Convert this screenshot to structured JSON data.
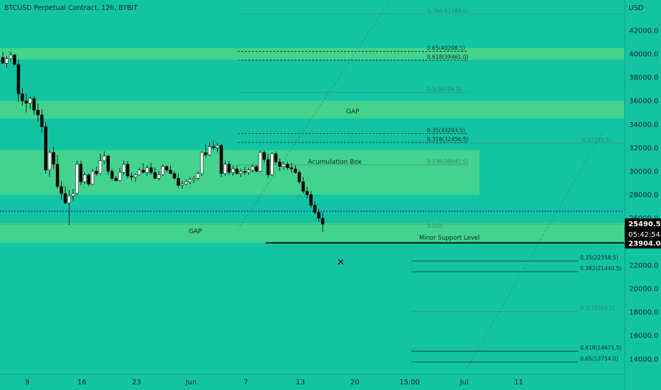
{
  "header": {
    "title": "BTCUSD Perpetual Contract, 12h, BYBIT",
    "currency": "USD"
  },
  "colors": {
    "background": "#13c4a3",
    "zone": "#43d38e",
    "candle_up": "#ffffff",
    "candle_down": "#000000",
    "blue_dotted": "#1f2dcc"
  },
  "chart_data": {
    "type": "candlestick",
    "title": "BTCUSD Perpetual Contract, 12h, BYBIT",
    "y_axis": {
      "unit": "USD",
      "range": [
        13000,
        44000
      ],
      "ticks": [
        14000,
        16000,
        18000,
        20000,
        22000,
        24000,
        26000,
        28000,
        30000,
        32000,
        34000,
        36000,
        38000,
        40000,
        42000
      ],
      "tick_labels": [
        "14000.0",
        "16000.0",
        "18000.0",
        "20000.0",
        "22000.0",
        "24000.0",
        "26000.0",
        "28000.0",
        "30000.0",
        "32000.0",
        "34000.0",
        "36000.0",
        "38000.0",
        "40000.0",
        "42000.0"
      ]
    },
    "x_axis": {
      "labels": [
        "9",
        "16",
        "23",
        "Jun",
        "7",
        "13",
        "20",
        "15:00",
        "Jul",
        "11"
      ],
      "label_index": [
        7,
        21,
        35,
        49,
        63,
        77,
        91,
        105,
        119,
        133
      ]
    },
    "candles_ohlc": [
      [
        39700,
        40200,
        39200,
        39200
      ],
      [
        39200,
        39800,
        38800,
        39600
      ],
      [
        39600,
        40200,
        39400,
        39900
      ],
      [
        39900,
        40000,
        39000,
        39100
      ],
      [
        39100,
        39500,
        35900,
        36600
      ],
      [
        36600,
        37100,
        35600,
        36000
      ],
      [
        36000,
        36600,
        35000,
        35800
      ],
      [
        35800,
        36400,
        35300,
        36200
      ],
      [
        36200,
        36400,
        34800,
        35200
      ],
      [
        35200,
        35800,
        34200,
        34800
      ],
      [
        34800,
        35300,
        33300,
        33800
      ],
      [
        33800,
        34200,
        29800,
        30100
      ],
      [
        30100,
        31800,
        29500,
        31600
      ],
      [
        31600,
        32100,
        30200,
        30600
      ],
      [
        30600,
        31400,
        28500,
        28700
      ],
      [
        28700,
        29200,
        27600,
        28100
      ],
      [
        28100,
        28700,
        27200,
        27300
      ],
      [
        27300,
        28400,
        25400,
        27900
      ],
      [
        27900,
        28500,
        27500,
        28100
      ],
      [
        28100,
        30900,
        28000,
        30600
      ],
      [
        30600,
        30900,
        28800,
        29100
      ],
      [
        29100,
        29900,
        28900,
        29700
      ],
      [
        29700,
        29800,
        28700,
        28900
      ],
      [
        28900,
        30200,
        28800,
        30000
      ],
      [
        30000,
        30400,
        29600,
        29800
      ],
      [
        29800,
        31500,
        29700,
        30900
      ],
      [
        30900,
        31700,
        30600,
        31300
      ],
      [
        31300,
        31400,
        29700,
        30000
      ],
      [
        30000,
        30200,
        29200,
        29400
      ],
      [
        29400,
        29600,
        29100,
        29200
      ],
      [
        29200,
        30300,
        29100,
        29900
      ],
      [
        29900,
        30900,
        29700,
        30600
      ],
      [
        30600,
        30900,
        29400,
        29600
      ],
      [
        29600,
        29900,
        29200,
        29500
      ],
      [
        29500,
        29800,
        29100,
        29700
      ],
      [
        29700,
        30300,
        29600,
        30100
      ],
      [
        30100,
        30700,
        29800,
        29900
      ],
      [
        29900,
        30500,
        29600,
        30300
      ],
      [
        30300,
        30700,
        29700,
        29900
      ],
      [
        29900,
        30300,
        29300,
        29400
      ],
      [
        29400,
        30000,
        29200,
        29700
      ],
      [
        29700,
        30600,
        29600,
        30400
      ],
      [
        30400,
        30500,
        29900,
        30100
      ],
      [
        30100,
        30500,
        29700,
        29800
      ],
      [
        29800,
        30000,
        29300,
        29400
      ],
      [
        29400,
        29800,
        28600,
        28800
      ],
      [
        28800,
        29200,
        28500,
        28900
      ],
      [
        28900,
        29300,
        28800,
        29100
      ],
      [
        29100,
        29500,
        28900,
        29300
      ],
      [
        29300,
        29600,
        29000,
        29400
      ],
      [
        29400,
        30000,
        29200,
        29800
      ],
      [
        29800,
        31700,
        29600,
        31600
      ],
      [
        31600,
        32300,
        31200,
        31400
      ],
      [
        31400,
        32500,
        31300,
        32100
      ],
      [
        32100,
        32600,
        31800,
        32000
      ],
      [
        32000,
        32400,
        31600,
        32200
      ],
      [
        32200,
        32300,
        29500,
        29800
      ],
      [
        29800,
        30900,
        29600,
        30600
      ],
      [
        30600,
        30900,
        29700,
        29900
      ],
      [
        29900,
        30500,
        29600,
        30200
      ],
      [
        30200,
        30500,
        29700,
        29800
      ],
      [
        29800,
        30200,
        29500,
        30000
      ],
      [
        30000,
        30400,
        29700,
        29900
      ],
      [
        29900,
        30300,
        29700,
        30100
      ],
      [
        30100,
        30600,
        29900,
        30400
      ],
      [
        30400,
        30500,
        29900,
        30000
      ],
      [
        30000,
        31800,
        29900,
        31600
      ],
      [
        31600,
        31800,
        30700,
        31000
      ],
      [
        31000,
        31500,
        29400,
        29700
      ],
      [
        29700,
        31600,
        29600,
        31500
      ],
      [
        31500,
        31700,
        30600,
        30800
      ],
      [
        30800,
        31100,
        30000,
        30400
      ],
      [
        30400,
        30800,
        30100,
        30600
      ],
      [
        30600,
        30800,
        30100,
        30300
      ],
      [
        30300,
        30700,
        29900,
        30200
      ],
      [
        30200,
        30500,
        29800,
        29900
      ],
      [
        29900,
        30100,
        28900,
        29100
      ],
      [
        29100,
        29500,
        28100,
        28300
      ],
      [
        28300,
        28700,
        27700,
        28000
      ],
      [
        28000,
        28300,
        26900,
        27100
      ],
      [
        27100,
        27400,
        26300,
        26500
      ],
      [
        26500,
        26800,
        25700,
        26000
      ],
      [
        26000,
        26500,
        24800,
        25490.5
      ]
    ],
    "horizontal_lines": [
      {
        "label": "0.786(43384.0)",
        "value": 43384.0,
        "style": "solid-faint",
        "x_from": 335,
        "x_to": 880
      },
      {
        "label": "0.65(40208.5)",
        "value": 40208.5,
        "style": "dashed",
        "x_from": 335,
        "x_to": 660
      },
      {
        "label": "0.618(39461.0)",
        "value": 39461.0,
        "style": "dashed",
        "x_from": 335,
        "x_to": 660
      },
      {
        "label": "0.5(36706.0)",
        "value": 36706.0,
        "style": "solid-faint",
        "x_from": 335,
        "x_to": 660
      },
      {
        "label": "0.35(33203.5)",
        "value": 33203.5,
        "style": "dashed",
        "x_from": 335,
        "x_to": 660
      },
      {
        "label": "0.318(32456.5)",
        "value": 32456.5,
        "style": "dashed",
        "x_from": 335,
        "x_to": 660
      },
      {
        "label": "0.236(30541.5)",
        "value": 30541.5,
        "style": "solid-faint",
        "x_from": 335,
        "x_to": 660
      },
      {
        "label": "0(32395.5)",
        "value": 32395.5,
        "style": "solid-faint",
        "x_from": 580,
        "x_to": 880
      },
      {
        "label": "0.35(22358.5)",
        "value": 22358.5,
        "style": "solid",
        "x_from": 580,
        "x_to": 815
      },
      {
        "label": "0.382(21440.5)",
        "value": 21440.5,
        "style": "solid",
        "x_from": 580,
        "x_to": 815
      },
      {
        "label": "0.5(18056.5)",
        "value": 18056.5,
        "style": "solid-faint",
        "x_from": 580,
        "x_to": 815
      },
      {
        "label": "0.618(14671.5)",
        "value": 14671.5,
        "style": "solid",
        "x_from": 580,
        "x_to": 815
      },
      {
        "label": "0.65(13754.0)",
        "value": 13754.0,
        "style": "solid",
        "x_from": 580,
        "x_to": 815
      }
    ],
    "zones": [
      {
        "label": "",
        "from": 39500,
        "to": 40500
      },
      {
        "label": "GAP",
        "from": 34500,
        "to": 36000
      },
      {
        "label": "Acumulation Box",
        "from": 28000,
        "to": 31800
      },
      {
        "label": "GAP",
        "from": 23900,
        "to": 25600
      }
    ],
    "annotations": {
      "gap_upper": "GAP",
      "acumulation_box": "Acumulation Box",
      "gap_lower": "GAP",
      "minor_support": "Minor Support Level",
      "cross_marker": "✕",
      "small_level": "0.5(0)",
      "price_current": "25490.5",
      "countdown": "05:42:54",
      "support_price": "23904.0"
    },
    "support_level": 23904.0,
    "blue_dotted_level": 26600,
    "current_price": 25490.5
  }
}
